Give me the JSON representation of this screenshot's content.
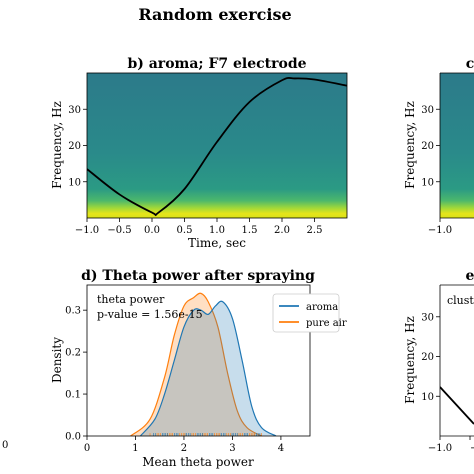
{
  "figure": {
    "suptitle": "Random exercise"
  },
  "colors": {
    "aroma": "#1f77b4",
    "pure_air": "#ff7f0e",
    "spec_bg": "#2a7f8c",
    "spec_band": "#d8e219",
    "line": "#000000"
  },
  "chart_data": [
    {
      "id": "b",
      "type": "heatmap",
      "title": "b) aroma; F7 electrode",
      "xlabel": "Time, sec",
      "ylabel": "Frequency, Hz",
      "xlim": [
        -1.0,
        3.0
      ],
      "ylim": [
        0,
        40
      ],
      "xticks": [
        "−1.0",
        "−0.5",
        "0.0",
        "0.5",
        "1.0",
        "1.5",
        "2.0",
        "2.5"
      ],
      "yticks": [
        "10",
        "20",
        "30"
      ],
      "colormap": "viridis",
      "overlay_curve": {
        "x": [
          -1.0,
          -0.5,
          0.0,
          0.1,
          0.5,
          1.0,
          1.5,
          2.0,
          2.2,
          2.5,
          3.0
        ],
        "y": [
          13.5,
          6.5,
          1.5,
          1.5,
          8.0,
          21.0,
          32.0,
          38.0,
          38.5,
          38.2,
          36.5
        ]
      }
    },
    {
      "id": "c",
      "type": "heatmap",
      "title": "c",
      "ylabel": "Frequency, Hz",
      "yticks": [
        "10",
        "20",
        "30"
      ],
      "xticks": [
        "−1.0"
      ],
      "colormap": "viridis"
    },
    {
      "id": "d",
      "type": "area",
      "title": "d) Theta power after spraying",
      "xlabel": "Mean theta power",
      "ylabel": "Density",
      "xlim": [
        0,
        4.6
      ],
      "ylim": [
        0,
        0.36
      ],
      "xticks": [
        "0",
        "1",
        "2",
        "3",
        "4"
      ],
      "yticks": [
        "0.0",
        "0.1",
        "0.2",
        "0.3"
      ],
      "annotation": [
        "theta power",
        "p-value = 1.56e-15"
      ],
      "legend": "top-right",
      "series": [
        {
          "name": "aroma",
          "x": [
            1.1,
            1.4,
            1.6,
            1.8,
            2.0,
            2.2,
            2.35,
            2.5,
            2.65,
            2.8,
            3.0,
            3.2,
            3.4,
            3.6,
            3.9
          ],
          "values": [
            0.0,
            0.04,
            0.1,
            0.18,
            0.26,
            0.3,
            0.3,
            0.29,
            0.31,
            0.32,
            0.28,
            0.18,
            0.07,
            0.02,
            0.0
          ]
        },
        {
          "name": "pure air",
          "x": [
            0.9,
            1.3,
            1.6,
            1.8,
            2.0,
            2.2,
            2.35,
            2.5,
            2.7,
            2.9,
            3.1,
            3.3,
            3.6
          ],
          "values": [
            0.0,
            0.04,
            0.14,
            0.24,
            0.31,
            0.33,
            0.34,
            0.32,
            0.26,
            0.15,
            0.06,
            0.02,
            0.0
          ]
        }
      ]
    },
    {
      "id": "e",
      "type": "line",
      "title": "e",
      "ylabel": "Frequency, Hz",
      "yticks": [
        "10",
        "20",
        "30"
      ],
      "xticks": [
        "−1.0",
        "−0."
      ],
      "annotation": "clust"
    }
  ],
  "stray_label": "0"
}
